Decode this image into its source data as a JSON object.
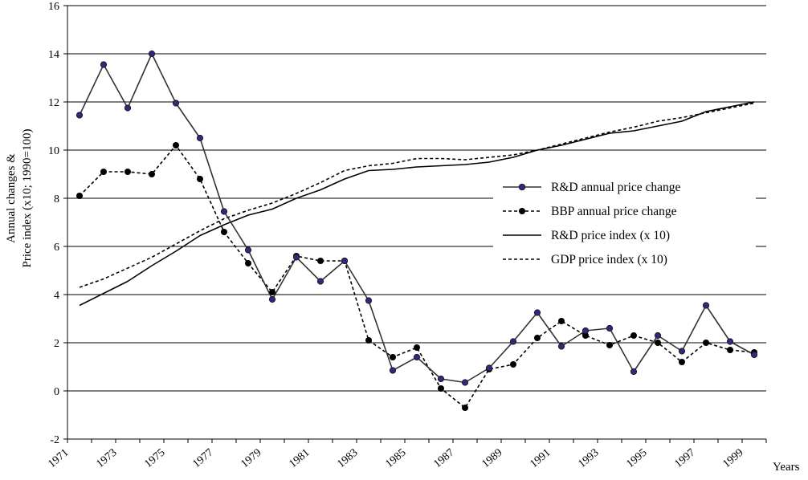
{
  "chart_data": {
    "type": "line",
    "title": "",
    "xlabel": "Years",
    "ylabel_lines": [
      "Annual changes &",
      "Price index (x10; 1990=100)"
    ],
    "ylim": [
      -2,
      16
    ],
    "yticks": [
      -2,
      0,
      2,
      4,
      6,
      8,
      10,
      12,
      14,
      16
    ],
    "xlim": [
      1971,
      2000
    ],
    "xticks": [
      1971,
      1973,
      1975,
      1977,
      1979,
      1981,
      1983,
      1985,
      1987,
      1989,
      1991,
      1993,
      1995,
      1997,
      1999
    ],
    "grid": "horizontal",
    "legend_position": "right",
    "x": [
      1971.5,
      1972.5,
      1973.5,
      1974.5,
      1975.5,
      1976.5,
      1977.5,
      1978.5,
      1979.5,
      1980.5,
      1981.5,
      1982.5,
      1983.5,
      1984.5,
      1985.5,
      1986.5,
      1987.5,
      1988.5,
      1989.5,
      1990.5,
      1991.5,
      1992.5,
      1993.5,
      1994.5,
      1995.5,
      1996.5,
      1997.5,
      1998.5,
      1999.5
    ],
    "series": [
      {
        "name": "R&D annual price change",
        "style": "solid-markers",
        "color": "#333333",
        "marker_color": "#2b2b80",
        "values": [
          11.45,
          13.55,
          11.75,
          14.0,
          11.95,
          10.5,
          7.45,
          5.85,
          3.8,
          5.55,
          4.55,
          5.4,
          3.75,
          0.85,
          1.4,
          0.5,
          0.35,
          0.95,
          2.05,
          3.25,
          1.85,
          2.5,
          2.6,
          0.8,
          2.3,
          1.65,
          3.55,
          2.05,
          1.5
        ]
      },
      {
        "name": "BBP annual price change",
        "style": "dashed-markers",
        "color": "#000000",
        "marker_color": "#000000",
        "values": [
          8.1,
          9.1,
          9.1,
          9.0,
          10.2,
          8.8,
          6.6,
          5.3,
          4.1,
          5.6,
          5.4,
          5.4,
          2.1,
          1.4,
          1.8,
          0.1,
          -0.7,
          0.9,
          1.1,
          2.2,
          2.9,
          2.3,
          1.9,
          2.3,
          2.0,
          1.2,
          2.0,
          1.7,
          1.6
        ]
      },
      {
        "name": "R&D price index (x 10)",
        "style": "solid",
        "color": "#000000",
        "values": [
          3.55,
          4.05,
          4.55,
          5.2,
          5.8,
          6.45,
          6.9,
          7.3,
          7.55,
          8.0,
          8.35,
          8.8,
          9.15,
          9.2,
          9.3,
          9.35,
          9.4,
          9.5,
          9.7,
          10.0,
          10.2,
          10.45,
          10.7,
          10.8,
          11.0,
          11.2,
          11.6,
          11.8,
          12.0
        ]
      },
      {
        "name": "GDP price index (x 10)",
        "style": "dashed",
        "color": "#000000",
        "values": [
          4.3,
          4.65,
          5.1,
          5.55,
          6.1,
          6.65,
          7.15,
          7.5,
          7.8,
          8.2,
          8.65,
          9.15,
          9.35,
          9.45,
          9.65,
          9.65,
          9.6,
          9.7,
          9.8,
          10.0,
          10.25,
          10.5,
          10.75,
          10.95,
          11.2,
          11.35,
          11.55,
          11.75,
          11.95
        ]
      }
    ]
  }
}
